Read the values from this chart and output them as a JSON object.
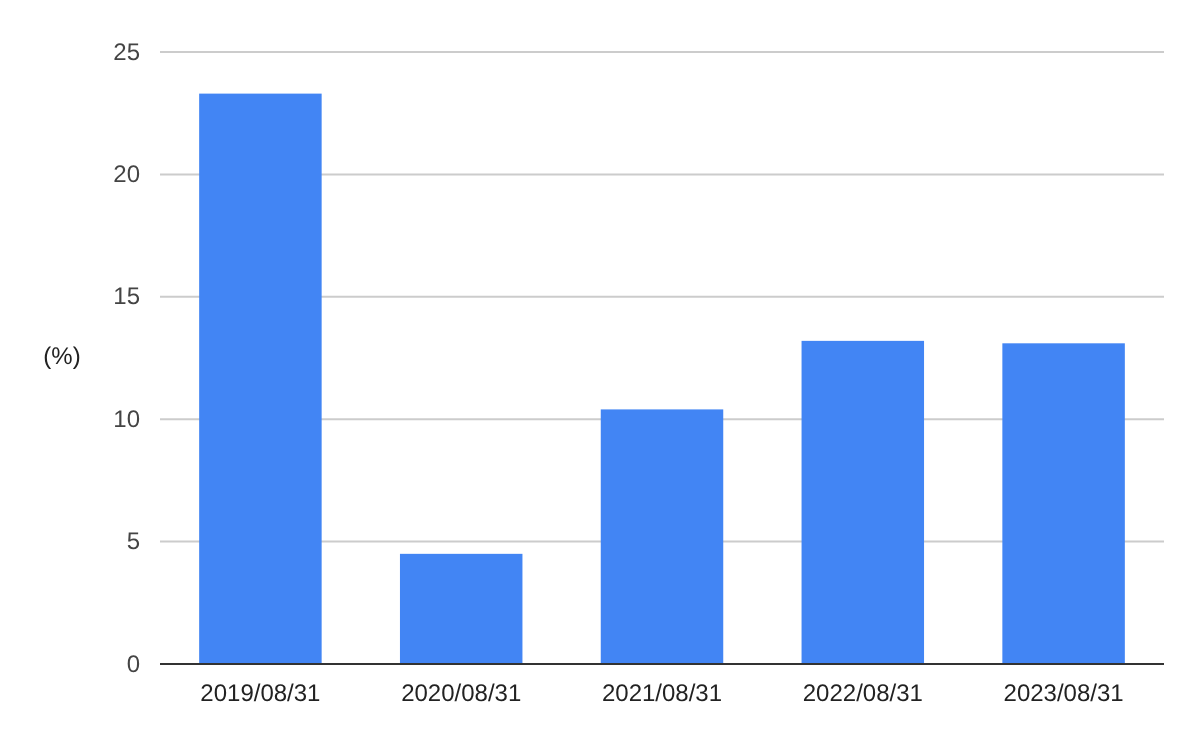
{
  "chart_data": {
    "type": "bar",
    "ylabel": "(%)",
    "categories": [
      "2019/08/31",
      "2020/08/31",
      "2021/08/31",
      "2022/08/31",
      "2023/08/31"
    ],
    "values": [
      23.3,
      4.5,
      10.4,
      13.2,
      13.1
    ],
    "color": "#4285f4",
    "ylim": [
      0,
      25
    ],
    "yticks": [
      0,
      5,
      10,
      15,
      20,
      25
    ],
    "grid": "y"
  }
}
